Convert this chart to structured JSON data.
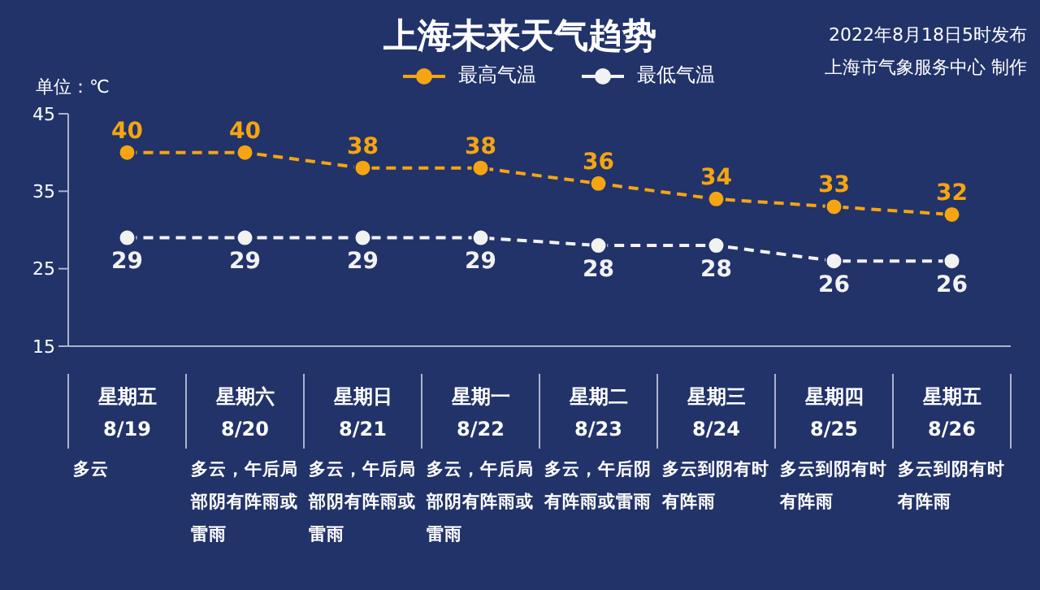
{
  "chart_data": {
    "type": "line",
    "title": "上海未来天气趋势",
    "ylabel": "单位：℃",
    "annotations": [
      "2022年8月18日5时发布",
      "上海市气象服务中心 制作",
      "多云",
      "多云，午后局部阴有阵雨或雷雨",
      "多云，午后局部阴有阵雨或雷雨",
      "多云，午后局部阴有阵雨或雷雨",
      "多云，午后阴有阵雨或雷雨",
      "多云到阴有时有阵雨",
      "多云到阴有时有阵雨",
      "多云到阴有时有阵雨"
    ],
    "categories": [
      "星期五\n8/19",
      "星期六\n8/20",
      "星期日\n8/21",
      "星期一\n8/22",
      "星期二\n8/23",
      "星期三\n8/24",
      "星期四\n8/25",
      "星期五\n8/26"
    ],
    "series": [
      {
        "name": "最高气温",
        "color": "#f5a511",
        "values": [
          40,
          40,
          38,
          38,
          36,
          34,
          33,
          32
        ]
      },
      {
        "name": "最低气温",
        "color": "#f2f2f2",
        "values": [
          29,
          29,
          29,
          29,
          28,
          28,
          26,
          26
        ]
      }
    ],
    "ylim": [
      15,
      45
    ],
    "yticks": [
      15,
      25,
      35,
      45
    ],
    "grid": false,
    "legend": "top right",
    "marker": "circle",
    "line_style": "dashed",
    "data_labels": true
  }
}
